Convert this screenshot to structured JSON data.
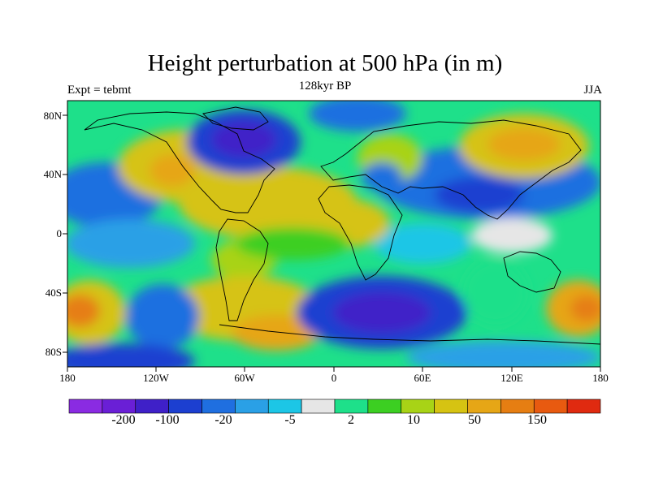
{
  "title": "Height perturbation at 500 hPa (in m)",
  "subtitle_left": "Expt = tebmt",
  "subtitle_center": "128kyr BP",
  "subtitle_right": "JJA",
  "y_axis_labels": [
    "80N",
    "40N",
    "0",
    "40S",
    "80S"
  ],
  "x_axis_labels": [
    "180",
    "120W",
    "60W",
    "0",
    "60E",
    "120E",
    "180"
  ],
  "colorbar": {
    "colors": [
      "#8a2be2",
      "#6a1fd6",
      "#3f20c8",
      "#1c3fd0",
      "#1f6fe0",
      "#2aa0e6",
      "#1cc6e6",
      "#e6e6e6",
      "#1ee08a",
      "#3ccf22",
      "#a8d316",
      "#d6c312",
      "#e6a616",
      "#e67e12",
      "#e85a10",
      "#e02a10"
    ],
    "labels": [
      "-200",
      "-100",
      "-20",
      "-5",
      "2",
      "10",
      "50",
      "150"
    ]
  }
}
